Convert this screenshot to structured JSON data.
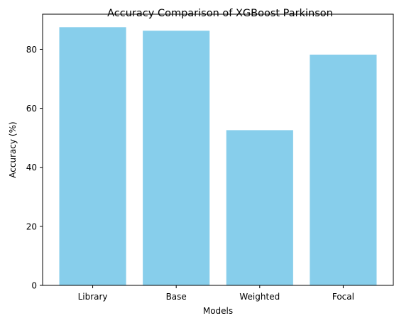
{
  "chart_data": {
    "type": "bar",
    "title": "Accuracy Comparison of XGBoost Parkinson",
    "xlabel": "Models",
    "ylabel": "Accuracy (%)",
    "categories": [
      "Library",
      "Base",
      "Weighted",
      "Focal"
    ],
    "values": [
      87.5,
      86.3,
      52.6,
      78.2
    ],
    "ylim": [
      0,
      91.9
    ],
    "yticks": [
      0,
      20,
      40,
      60,
      80
    ],
    "bar_color": "#87ceeb",
    "grid": false,
    "legend": "none"
  }
}
